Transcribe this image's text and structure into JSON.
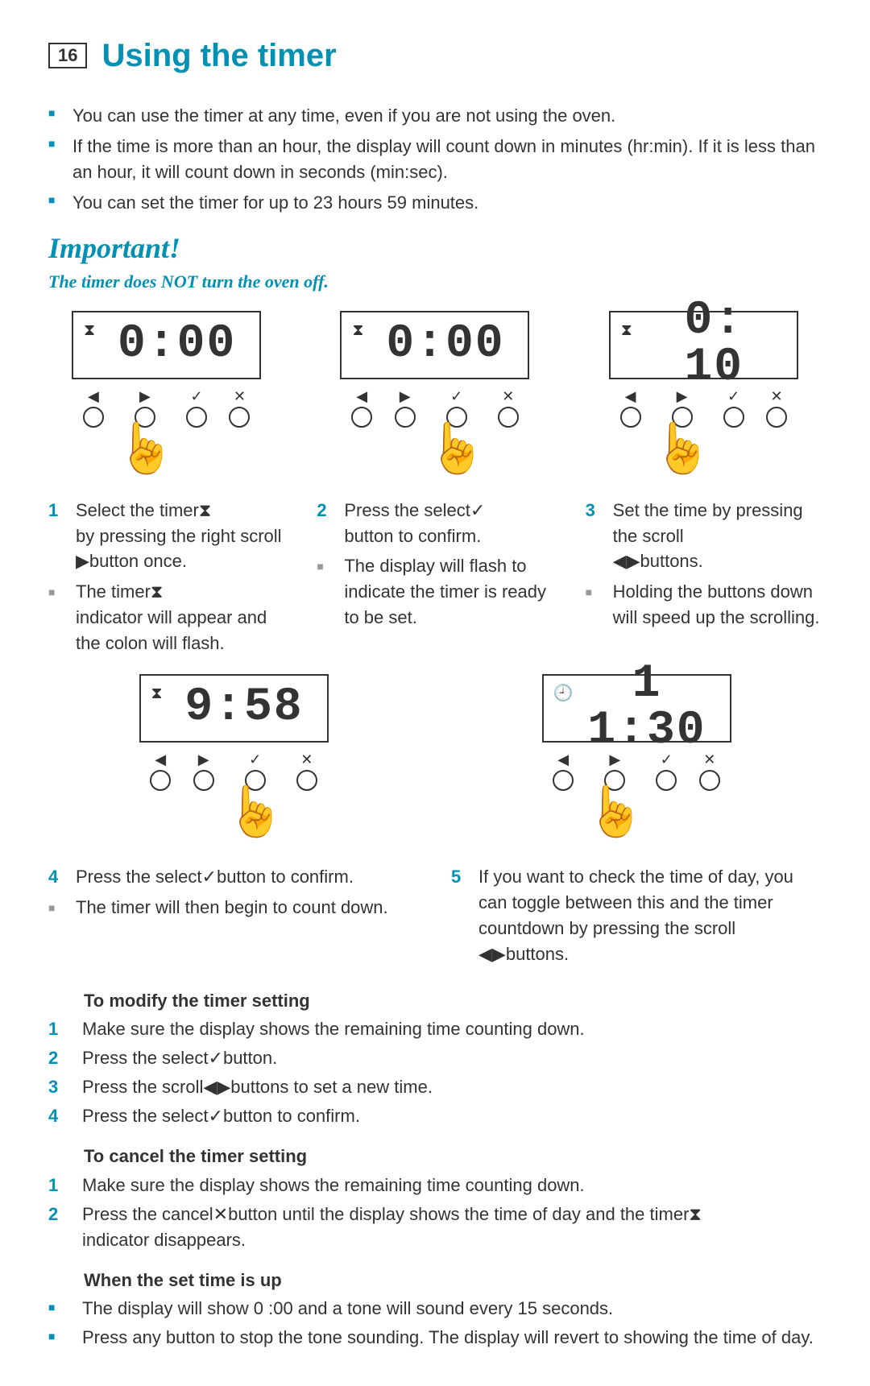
{
  "header": {
    "page_number": "16",
    "title": "Using the timer"
  },
  "intro_bullets": [
    "You can use the timer at any time, even if you are not using the oven.",
    "If the time is more than an hour, the display will count down in minutes (hr:min). If it is less than an hour, it will count down in seconds (min:sec).",
    "You can set the timer for up to 23 hours 59 minutes."
  ],
  "important": {
    "title": "Important!",
    "subtitle": "The timer does NOT turn the oven off."
  },
  "panels": {
    "p1": {
      "icon": "⧗",
      "digits": "0:00"
    },
    "p2": {
      "icon": "⧗",
      "digits": "0:00"
    },
    "p3": {
      "icon": "⧗",
      "digits": "0: 10"
    },
    "p4": {
      "icon": "⧗",
      "digits": "9:58"
    },
    "p5": {
      "icon": "🕘",
      "digits": "1 1:30"
    }
  },
  "buttons": {
    "symbols": [
      "◀",
      "▶",
      "✓",
      "✕"
    ]
  },
  "steps_row1": {
    "col1": {
      "main": {
        "num": "1",
        "text_parts": [
          "Select the timer ",
          "⧗",
          " by pressing the right scroll ",
          "▶",
          " button once."
        ]
      },
      "sub": {
        "text_parts": [
          "The timer ",
          "⧗",
          " indicator will appear and the colon will flash."
        ]
      }
    },
    "col2": {
      "main": {
        "num": "2",
        "text_parts": [
          "Press the select ",
          "✓",
          " button to confirm."
        ]
      },
      "sub": {
        "text_parts": [
          "The display will flash to indicate the timer is ready to be set."
        ]
      }
    },
    "col3": {
      "main": {
        "num": "3",
        "text_parts": [
          "Set the time by pressing the scroll ",
          "◀",
          "  ",
          "▶",
          " buttons."
        ]
      },
      "sub": {
        "text_parts": [
          "Holding the buttons down will speed up the scrolling."
        ]
      }
    }
  },
  "steps_row2": {
    "col1": {
      "main": {
        "num": "4",
        "text_parts": [
          "Press the select ",
          "✓",
          " button to confirm."
        ]
      },
      "sub": {
        "text_parts": [
          "The timer will then begin to count down."
        ]
      }
    },
    "col2": {
      "main": {
        "num": "5",
        "text_parts": [
          "If you want to check the time of day, you can toggle between this and the timer countdown by pressing the scroll ",
          "◀",
          "  ",
          "▶",
          " buttons."
        ]
      }
    }
  },
  "modify": {
    "heading": "To modify the timer setting",
    "items": [
      {
        "num": "1",
        "text_parts": [
          "Make sure the display shows the remaining time counting down."
        ]
      },
      {
        "num": "2",
        "text_parts": [
          "Press the select ",
          "✓",
          " button."
        ]
      },
      {
        "num": "3",
        "text_parts": [
          "Press the scroll ",
          "◀",
          "  ",
          "▶",
          " buttons to set a new time."
        ]
      },
      {
        "num": "4",
        "text_parts": [
          "Press the select ",
          "✓",
          " button to confirm."
        ]
      }
    ]
  },
  "cancel": {
    "heading": "To cancel the timer setting",
    "items": [
      {
        "num": "1",
        "text_parts": [
          "Make sure the display shows the remaining time counting down."
        ]
      },
      {
        "num": "2",
        "text_parts": [
          "Press the cancel ",
          "✕",
          " button until the display shows the time of day and the timer ",
          "⧗",
          " indicator disappears."
        ]
      }
    ]
  },
  "timeup": {
    "heading": "When the set time is up",
    "items": [
      {
        "text_parts": [
          "The display will show 0 :00   and a tone will sound every 15 seconds."
        ]
      },
      {
        "text_parts": [
          "Press any button to stop the tone sounding. The display will revert to showing the time of day."
        ]
      }
    ]
  },
  "colors": {
    "accent": "#0091b5",
    "text": "#333333",
    "bullet_gray": "#999999"
  }
}
